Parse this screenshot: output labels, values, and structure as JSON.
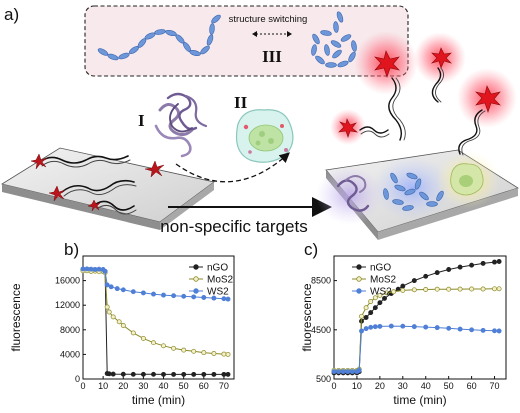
{
  "panel_a": {
    "letter": "a)",
    "structure_switching_label": "structure switching",
    "numeral_three": "III",
    "numeral_one": "I",
    "numeral_two": "II",
    "arrow_label": "non-specific targets"
  },
  "panel_b": {
    "letter": "b)"
  },
  "panel_c": {
    "letter": "c)"
  },
  "colors": {
    "nGO": "#222222",
    "MoS2": "#8a8a2a",
    "WS2": "#4f7fd6",
    "dye": "#cc1a1a",
    "glow": "#ff3a5a"
  },
  "chart_data": [
    {
      "type": "line",
      "id": "b",
      "xlabel": "time (min)",
      "ylabel": "fluorescence",
      "xlim": [
        0,
        75
      ],
      "ylim": [
        0,
        20000
      ],
      "xticks": [
        "0",
        "10",
        "20",
        "30",
        "40",
        "50",
        "60",
        "70"
      ],
      "yticks": [
        "0",
        "4000",
        "8000",
        "12000",
        "16000"
      ],
      "legend_position": "top-right",
      "series": [
        {
          "name": "nGO",
          "color": "#222222",
          "points": [
            [
              0,
              17800
            ],
            [
              1,
              17700
            ],
            [
              2,
              17700
            ],
            [
              3,
              17750
            ],
            [
              4,
              17650
            ],
            [
              5,
              17700
            ],
            [
              6,
              17600
            ],
            [
              7,
              17700
            ],
            [
              8,
              17650
            ],
            [
              9,
              17600
            ],
            [
              10,
              17600
            ],
            [
              11,
              17500
            ],
            [
              12,
              900
            ],
            [
              13,
              850
            ],
            [
              15,
              800
            ],
            [
              20,
              780
            ],
            [
              25,
              770
            ],
            [
              30,
              760
            ],
            [
              35,
              760
            ],
            [
              40,
              750
            ],
            [
              45,
              750
            ],
            [
              50,
              750
            ],
            [
              55,
              740
            ],
            [
              60,
              740
            ],
            [
              65,
              740
            ],
            [
              70,
              740
            ],
            [
              72,
              740
            ]
          ]
        },
        {
          "name": "MoS2",
          "color": "#8a8a2a",
          "points": [
            [
              0,
              17600
            ],
            [
              2,
              17600
            ],
            [
              4,
              17500
            ],
            [
              6,
              17550
            ],
            [
              8,
              17450
            ],
            [
              10,
              17500
            ],
            [
              11,
              17300
            ],
            [
              12,
              11700
            ],
            [
              13,
              10900
            ],
            [
              15,
              10100
            ],
            [
              18,
              9300
            ],
            [
              20,
              8700
            ],
            [
              25,
              7500
            ],
            [
              30,
              6600
            ],
            [
              35,
              5900
            ],
            [
              40,
              5400
            ],
            [
              45,
              5000
            ],
            [
              50,
              4700
            ],
            [
              55,
              4500
            ],
            [
              60,
              4300
            ],
            [
              65,
              4150
            ],
            [
              70,
              4050
            ],
            [
              72,
              4000
            ]
          ]
        },
        {
          "name": "WS2",
          "color": "#4f7fd6",
          "points": [
            [
              0,
              17900
            ],
            [
              2,
              17900
            ],
            [
              4,
              17850
            ],
            [
              6,
              17800
            ],
            [
              8,
              17850
            ],
            [
              10,
              17800
            ],
            [
              11,
              17500
            ],
            [
              12,
              15300
            ],
            [
              14,
              15000
            ],
            [
              17,
              14700
            ],
            [
              20,
              14500
            ],
            [
              25,
              14200
            ],
            [
              30,
              14000
            ],
            [
              35,
              13800
            ],
            [
              40,
              13650
            ],
            [
              45,
              13550
            ],
            [
              50,
              13450
            ],
            [
              55,
              13350
            ],
            [
              60,
              13250
            ],
            [
              65,
              13150
            ],
            [
              70,
              13050
            ],
            [
              72,
              13000
            ]
          ]
        }
      ]
    },
    {
      "type": "line",
      "id": "c",
      "xlabel": "time (min)",
      "ylabel": "fluorescence",
      "xlim": [
        0,
        75
      ],
      "ylim": [
        500,
        10500
      ],
      "xticks": [
        "0",
        "10",
        "20",
        "30",
        "40",
        "50",
        "60",
        "70"
      ],
      "yticks": [
        "500",
        "4500",
        "8500"
      ],
      "legend_position": "top-left",
      "series": [
        {
          "name": "nGO",
          "color": "#222222",
          "points": [
            [
              0,
              1000
            ],
            [
              2,
              1000
            ],
            [
              4,
              1000
            ],
            [
              6,
              1000
            ],
            [
              8,
              1000
            ],
            [
              10,
              1000
            ],
            [
              11,
              1100
            ],
            [
              12,
              5200
            ],
            [
              14,
              5500
            ],
            [
              16,
              5900
            ],
            [
              18,
              6300
            ],
            [
              20,
              6700
            ],
            [
              22,
              7050
            ],
            [
              25,
              7450
            ],
            [
              28,
              7800
            ],
            [
              30,
              8050
            ],
            [
              35,
              8500
            ],
            [
              40,
              8850
            ],
            [
              45,
              9150
            ],
            [
              50,
              9400
            ],
            [
              55,
              9600
            ],
            [
              60,
              9750
            ],
            [
              65,
              9900
            ],
            [
              70,
              10000
            ],
            [
              72,
              10050
            ]
          ]
        },
        {
          "name": "MoS2",
          "color": "#8a8a2a",
          "points": [
            [
              0,
              1200
            ],
            [
              2,
              1200
            ],
            [
              4,
              1200
            ],
            [
              6,
              1200
            ],
            [
              8,
              1200
            ],
            [
              10,
              1200
            ],
            [
              11,
              1300
            ],
            [
              12,
              5600
            ],
            [
              14,
              6300
            ],
            [
              16,
              6800
            ],
            [
              18,
              7100
            ],
            [
              20,
              7300
            ],
            [
              23,
              7500
            ],
            [
              26,
              7600
            ],
            [
              30,
              7700
            ],
            [
              35,
              7750
            ],
            [
              40,
              7780
            ],
            [
              45,
              7800
            ],
            [
              50,
              7800
            ],
            [
              55,
              7810
            ],
            [
              60,
              7820
            ],
            [
              65,
              7820
            ],
            [
              70,
              7830
            ],
            [
              72,
              7830
            ]
          ]
        },
        {
          "name": "WS2",
          "color": "#4f7fd6",
          "points": [
            [
              0,
              1100
            ],
            [
              2,
              1100
            ],
            [
              4,
              1100
            ],
            [
              6,
              1100
            ],
            [
              8,
              1100
            ],
            [
              10,
              1100
            ],
            [
              11,
              1200
            ],
            [
              12,
              4400
            ],
            [
              14,
              4600
            ],
            [
              16,
              4700
            ],
            [
              18,
              4750
            ],
            [
              20,
              4780
            ],
            [
              25,
              4800
            ],
            [
              30,
              4790
            ],
            [
              35,
              4760
            ],
            [
              40,
              4720
            ],
            [
              45,
              4680
            ],
            [
              50,
              4620
            ],
            [
              55,
              4560
            ],
            [
              60,
              4500
            ],
            [
              65,
              4450
            ],
            [
              70,
              4420
            ],
            [
              72,
              4400
            ]
          ]
        }
      ]
    }
  ]
}
